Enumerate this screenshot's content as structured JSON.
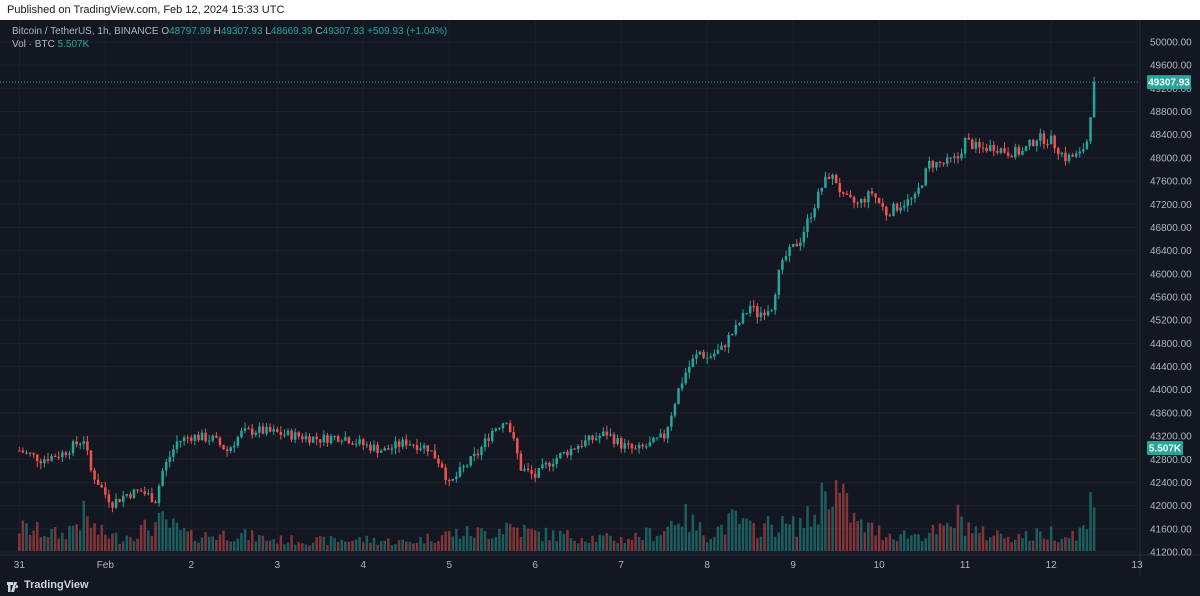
{
  "header": {
    "published": "Published on TradingView.com, Feb 12, 2024 15:33 UTC"
  },
  "footer": {
    "brand": "TradingView"
  },
  "colors": {
    "background": "#131722",
    "up": "#26a69a",
    "down": "#ef5350",
    "grid": "#1e222d",
    "text": "#b2b5be",
    "priceTag": "#26a69a"
  },
  "chart_data": {
    "type": "candlestick",
    "symbol": "Bitcoin / TetherUS, 1h, BINANCE",
    "ohlc": {
      "open_label": "O",
      "open": "48797.99",
      "high_label": "H",
      "high": "49307.93",
      "low_label": "L",
      "low": "48669.39",
      "close_label": "C",
      "close": "49307.93",
      "change": "+509.93 (+1.04%)"
    },
    "volume_label": "Vol · BTC",
    "volume_value": "5.507K",
    "last_price": "49307.93",
    "last_volume": "5.507K",
    "ylim": [
      41200,
      50000
    ],
    "y_ticks": [
      "50000.00",
      "49600.00",
      "49200.00",
      "48800.00",
      "48400.00",
      "48000.00",
      "47600.00",
      "47200.00",
      "46800.00",
      "46400.00",
      "46000.00",
      "45600.00",
      "45200.00",
      "44800.00",
      "44400.00",
      "44000.00",
      "43600.00",
      "43200.00",
      "42800.00",
      "42400.00",
      "42000.00",
      "41600.00",
      "41200.00"
    ],
    "y_tick_values": [
      50000,
      49600,
      49200,
      48800,
      48400,
      48000,
      47600,
      47200,
      46800,
      46400,
      46000,
      45600,
      45200,
      44800,
      44400,
      44000,
      43600,
      43200,
      42800,
      42400,
      42000,
      41600,
      41200
    ],
    "x_ticks": [
      "31",
      "Feb",
      "2",
      "3",
      "4",
      "5",
      "6",
      "7",
      "8",
      "9",
      "10",
      "11",
      "12",
      "13"
    ],
    "x_tick_hours": [
      0,
      24,
      48,
      72,
      96,
      120,
      144,
      168,
      192,
      216,
      240,
      264,
      288,
      312
    ],
    "close_path": [
      [
        0,
        42950
      ],
      [
        6,
        42800
      ],
      [
        12,
        42900
      ],
      [
        18,
        43150
      ],
      [
        20,
        42600
      ],
      [
        24,
        42200
      ],
      [
        26,
        42050
      ],
      [
        30,
        42200
      ],
      [
        34,
        42250
      ],
      [
        38,
        42100
      ],
      [
        40,
        42600
      ],
      [
        44,
        43100
      ],
      [
        48,
        43200
      ],
      [
        54,
        43150
      ],
      [
        58,
        42950
      ],
      [
        62,
        43250
      ],
      [
        66,
        43300
      ],
      [
        72,
        43250
      ],
      [
        78,
        43200
      ],
      [
        84,
        43150
      ],
      [
        90,
        43200
      ],
      [
        96,
        43050
      ],
      [
        102,
        42950
      ],
      [
        108,
        43100
      ],
      [
        114,
        43000
      ],
      [
        118,
        42700
      ],
      [
        120,
        42350
      ],
      [
        124,
        42650
      ],
      [
        128,
        42900
      ],
      [
        132,
        43300
      ],
      [
        136,
        43500
      ],
      [
        138,
        43100
      ],
      [
        140,
        42650
      ],
      [
        144,
        42500
      ],
      [
        148,
        42750
      ],
      [
        152,
        42900
      ],
      [
        156,
        43050
      ],
      [
        160,
        43150
      ],
      [
        164,
        43250
      ],
      [
        168,
        43050
      ],
      [
        172,
        42950
      ],
      [
        176,
        43050
      ],
      [
        180,
        43200
      ],
      [
        182,
        43600
      ],
      [
        184,
        44000
      ],
      [
        186,
        44300
      ],
      [
        188,
        44500
      ],
      [
        190,
        44650
      ],
      [
        192,
        44550
      ],
      [
        196,
        44700
      ],
      [
        198,
        44900
      ],
      [
        200,
        45050
      ],
      [
        202,
        45250
      ],
      [
        204,
        45450
      ],
      [
        206,
        45300
      ],
      [
        210,
        45450
      ],
      [
        212,
        46000
      ],
      [
        214,
        46300
      ],
      [
        218,
        46600
      ],
      [
        222,
        47200
      ],
      [
        224,
        47500
      ],
      [
        226,
        47700
      ],
      [
        228,
        47600
      ],
      [
        230,
        47300
      ],
      [
        234,
        47200
      ],
      [
        238,
        47400
      ],
      [
        242,
        47050
      ],
      [
        246,
        47200
      ],
      [
        250,
        47300
      ],
      [
        254,
        47900
      ],
      [
        258,
        47900
      ],
      [
        262,
        48000
      ],
      [
        264,
        48300
      ],
      [
        268,
        48150
      ],
      [
        272,
        48200
      ],
      [
        276,
        48100
      ],
      [
        280,
        48100
      ],
      [
        284,
        48350
      ],
      [
        288,
        48300
      ],
      [
        292,
        48000
      ],
      [
        296,
        48050
      ],
      [
        298,
        48300
      ],
      [
        299,
        48790
      ],
      [
        300,
        49308
      ]
    ],
    "volume_profile": [
      [
        0,
        1.6
      ],
      [
        12,
        1.1
      ],
      [
        18,
        2.4
      ],
      [
        22,
        1.3
      ],
      [
        28,
        0.9
      ],
      [
        40,
        2.0
      ],
      [
        48,
        1.0
      ],
      [
        60,
        1.2
      ],
      [
        70,
        0.8
      ],
      [
        84,
        0.7
      ],
      [
        96,
        0.8
      ],
      [
        108,
        0.6
      ],
      [
        120,
        1.2
      ],
      [
        132,
        1.3
      ],
      [
        136,
        1.8
      ],
      [
        144,
        1.2
      ],
      [
        156,
        1.0
      ],
      [
        168,
        0.8
      ],
      [
        180,
        1.4
      ],
      [
        184,
        2.6
      ],
      [
        192,
        1.1
      ],
      [
        200,
        2.2
      ],
      [
        204,
        1.5
      ],
      [
        210,
        1.8
      ],
      [
        216,
        1.7
      ],
      [
        222,
        2.4
      ],
      [
        226,
        4.9
      ],
      [
        228,
        4.2
      ],
      [
        234,
        1.8
      ],
      [
        242,
        1.2
      ],
      [
        250,
        1.1
      ],
      [
        258,
        1.4
      ],
      [
        262,
        2.3
      ],
      [
        268,
        1.2
      ],
      [
        276,
        1.1
      ],
      [
        282,
        1.0
      ],
      [
        288,
        1.3
      ],
      [
        292,
        1.0
      ],
      [
        298,
        1.6
      ],
      [
        299,
        3.2
      ],
      [
        300,
        5.5
      ]
    ]
  }
}
